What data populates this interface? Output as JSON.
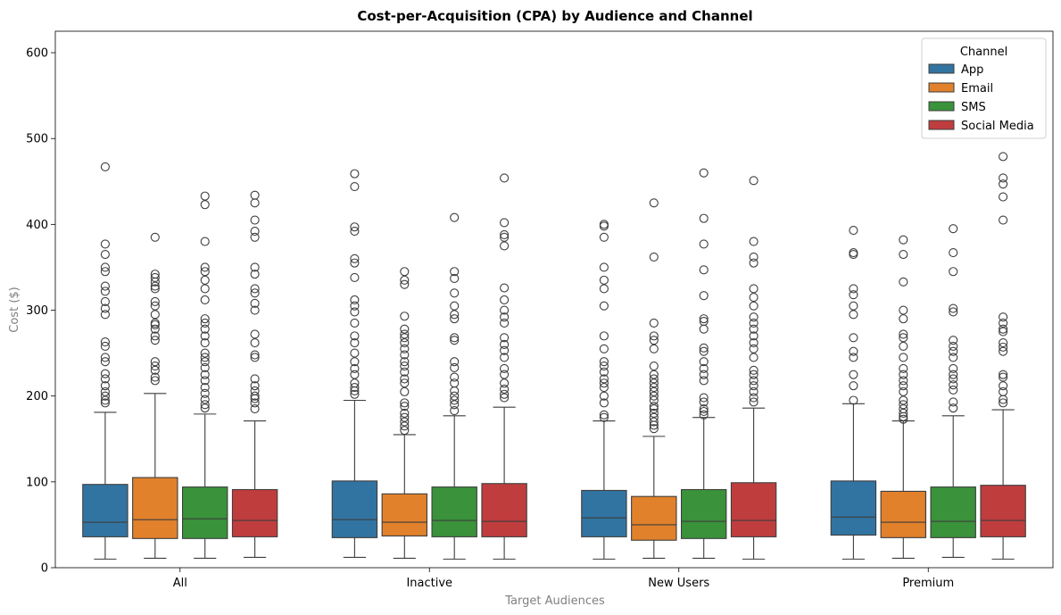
{
  "chart_data": {
    "type": "boxplot",
    "title": "Cost-per-Acquisition (CPA) by Audience and Channel",
    "xlabel": "Target Audiences",
    "ylabel": "Cost ($)",
    "ylim": [
      0,
      625
    ],
    "yticks": [
      0,
      100,
      200,
      300,
      400,
      500,
      600
    ],
    "categories": [
      "All",
      "Inactive",
      "New Users",
      "Premium"
    ],
    "legend": {
      "title": "Channel",
      "placement": "top-right"
    },
    "series": [
      {
        "name": "App",
        "color": "#3274a1",
        "boxes": [
          {
            "whisker_low": 10,
            "q1": 36,
            "median": 53,
            "q3": 97,
            "whisker_high": 181,
            "outliers": [
              192,
              195,
              200,
              205,
              212,
              220,
              226,
              240,
              245,
              258,
              263,
              295,
              302,
              310,
              322,
              328,
              345,
              350,
              365,
              377,
              467
            ]
          },
          {
            "whisker_low": 12,
            "q1": 35,
            "median": 56,
            "q3": 101,
            "whisker_high": 195,
            "outliers": [
              202,
              206,
              210,
              215,
              225,
              232,
              240,
              250,
              262,
              270,
              285,
              298,
              305,
              312,
              338,
              355,
              360,
              392,
              397,
              444,
              459
            ]
          },
          {
            "whisker_low": 10,
            "q1": 36,
            "median": 58,
            "q3": 90,
            "whisker_high": 171,
            "outliers": [
              175,
              178,
              192,
              200,
              210,
              215,
              220,
              228,
              235,
              240,
              255,
              270,
              305,
              325,
              335,
              350,
              385,
              398,
              400
            ]
          },
          {
            "whisker_low": 10,
            "q1": 38,
            "median": 59,
            "q3": 101,
            "whisker_high": 191,
            "outliers": [
              195,
              212,
              225,
              245,
              252,
              268,
              295,
              305,
              318,
              325,
              365,
              367,
              393
            ]
          }
        ]
      },
      {
        "name": "Email",
        "color": "#e1812c",
        "boxes": [
          {
            "whisker_low": 11,
            "q1": 34,
            "median": 56,
            "q3": 105,
            "whisker_high": 203,
            "outliers": [
              218,
              222,
              230,
              235,
              240,
              265,
              270,
              278,
              283,
              285,
              295,
              305,
              310,
              325,
              328,
              333,
              338,
              342,
              385
            ]
          },
          {
            "whisker_low": 11,
            "q1": 37,
            "median": 53,
            "q3": 86,
            "whisker_high": 155,
            "outliers": [
              160,
              165,
              170,
              175,
              180,
              188,
              192,
              205,
              215,
              220,
              228,
              235,
              240,
              248,
              255,
              262,
              268,
              272,
              278,
              293,
              330,
              335,
              345
            ]
          },
          {
            "whisker_low": 11,
            "q1": 32,
            "median": 50,
            "q3": 83,
            "whisker_high": 153,
            "outliers": [
              162,
              166,
              170,
              175,
              180,
              185,
              188,
              195,
              200,
              205,
              210,
              215,
              220,
              225,
              235,
              255,
              265,
              270,
              285,
              362,
              425
            ]
          },
          {
            "whisker_low": 11,
            "q1": 35,
            "median": 53,
            "q3": 89,
            "whisker_high": 171,
            "outliers": [
              173,
              176,
              180,
              185,
              190,
              195,
              205,
              212,
              218,
              225,
              232,
              245,
              258,
              268,
              272,
              290,
              300,
              333,
              365,
              382
            ]
          }
        ]
      },
      {
        "name": "SMS",
        "color": "#3a923a",
        "boxes": [
          {
            "whisker_low": 11,
            "q1": 34,
            "median": 57,
            "q3": 94,
            "whisker_high": 179,
            "outliers": [
              186,
              190,
              196,
              203,
              210,
              218,
              225,
              233,
              240,
              245,
              250,
              262,
              270,
              278,
              285,
              290,
              312,
              325,
              335,
              345,
              350,
              380,
              423,
              433
            ]
          },
          {
            "whisker_low": 10,
            "q1": 36,
            "median": 55,
            "q3": 94,
            "whisker_high": 177,
            "outliers": [
              183,
              190,
              195,
              200,
              206,
              215,
              222,
              233,
              240,
              265,
              268,
              290,
              295,
              305,
              320,
              337,
              345,
              408
            ]
          },
          {
            "whisker_low": 11,
            "q1": 34,
            "median": 54,
            "q3": 91,
            "whisker_high": 175,
            "outliers": [
              178,
              182,
              185,
              193,
              198,
              218,
              225,
              232,
              240,
              252,
              256,
              278,
              287,
              290,
              317,
              347,
              377,
              407,
              460
            ]
          },
          {
            "whisker_low": 12,
            "q1": 35,
            "median": 54,
            "q3": 94,
            "whisker_high": 177,
            "outliers": [
              186,
              193,
              207,
              213,
              220,
              225,
              232,
              245,
              252,
              258,
              265,
              298,
              302,
              345,
              367,
              395
            ]
          }
        ]
      },
      {
        "name": "Social Media",
        "color": "#c03d3e",
        "boxes": [
          {
            "whisker_low": 12,
            "q1": 36,
            "median": 55,
            "q3": 91,
            "whisker_high": 171,
            "outliers": [
              185,
              192,
              197,
              200,
              206,
              212,
              220,
              245,
              248,
              262,
              272,
              300,
              308,
              320,
              325,
              342,
              350,
              385,
              392,
              405,
              425,
              434
            ]
          },
          {
            "whisker_low": 10,
            "q1": 36,
            "median": 54,
            "q3": 98,
            "whisker_high": 187,
            "outliers": [
              198,
              202,
              208,
              215,
              225,
              232,
              245,
              253,
              260,
              268,
              285,
              292,
              300,
              312,
              326,
              375,
              385,
              388,
              402,
              454
            ]
          },
          {
            "whisker_low": 10,
            "q1": 36,
            "median": 55,
            "q3": 99,
            "whisker_high": 186,
            "outliers": [
              193,
              198,
              205,
              212,
              218,
              225,
              230,
              245,
              255,
              262,
              270,
              278,
              285,
              292,
              305,
              315,
              325,
              355,
              362,
              380,
              451
            ]
          },
          {
            "whisker_low": 10,
            "q1": 36,
            "median": 55,
            "q3": 96,
            "whisker_high": 184,
            "outliers": [
              192,
              196,
              205,
              212,
              222,
              225,
              252,
              257,
              262,
              275,
              278,
              285,
              292,
              405,
              432,
              447,
              454,
              479
            ]
          }
        ]
      }
    ]
  }
}
